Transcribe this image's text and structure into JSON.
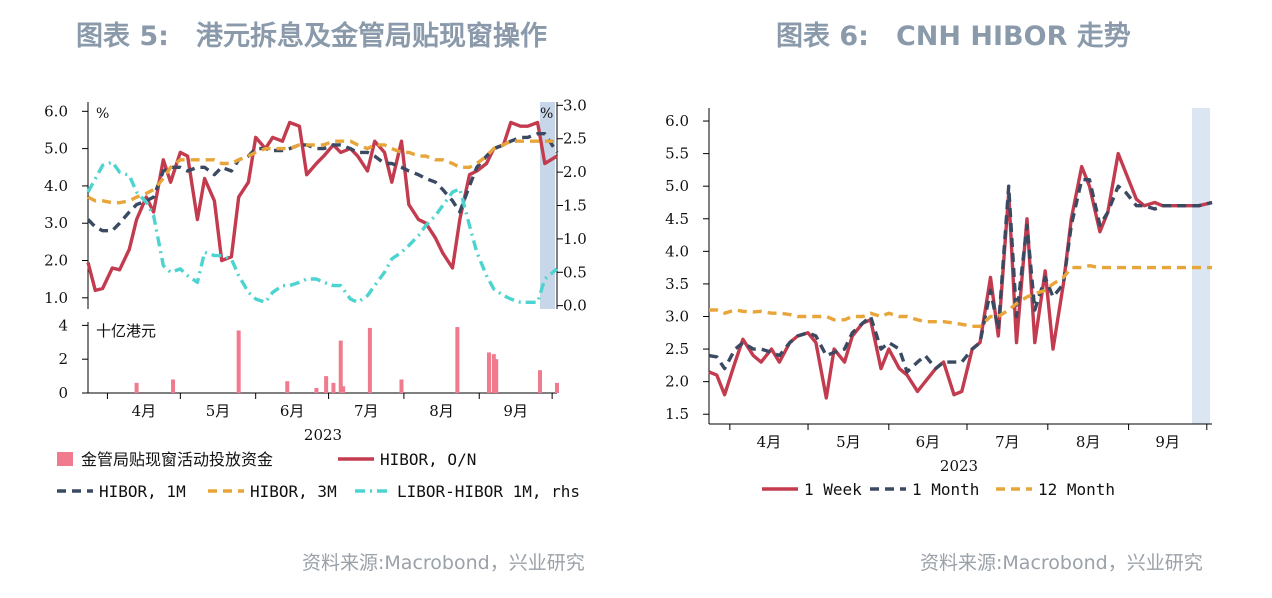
{
  "left": {
    "title": "图表 5:　港元拆息及金管局贴现窗操作",
    "source": "资料来源:Macrobond，兴业研究",
    "chart_data": [
      {
        "type": "line",
        "x": [
          "2023-03-24",
          "2023-03-27",
          "2023-03-30",
          "2023-04-03",
          "2023-04-06",
          "2023-04-10",
          "2023-04-13",
          "2023-04-17",
          "2023-04-20",
          "2023-04-24",
          "2023-04-27",
          "2023-05-01",
          "2023-05-04",
          "2023-05-08",
          "2023-05-11",
          "2023-05-15",
          "2023-05-18",
          "2023-05-22",
          "2023-05-25",
          "2023-05-29",
          "2023-06-01",
          "2023-06-05",
          "2023-06-08",
          "2023-06-12",
          "2023-06-15",
          "2023-06-19",
          "2023-06-22",
          "2023-06-26",
          "2023-06-29",
          "2023-07-03",
          "2023-07-06",
          "2023-07-10",
          "2023-07-13",
          "2023-07-17",
          "2023-07-20",
          "2023-07-24",
          "2023-07-27",
          "2023-07-31",
          "2023-08-03",
          "2023-08-07",
          "2023-08-10",
          "2023-08-14",
          "2023-08-17",
          "2023-08-21",
          "2023-08-24",
          "2023-08-28",
          "2023-08-31",
          "2023-09-04",
          "2023-09-07",
          "2023-09-11",
          "2023-09-14",
          "2023-09-18",
          "2023-09-21",
          "2023-09-25",
          "2023-09-28",
          "2023-10-03"
        ],
        "y_axis_left": {
          "ticks": [
            "1.0",
            "2.0",
            "3.0",
            "4.0",
            "5.0",
            "6.0"
          ],
          "unit": "%",
          "ylim": [
            0.7,
            6.25
          ]
        },
        "y_axis_right": {
          "ticks": [
            "0.0",
            "0.5",
            "1.0",
            "1.5",
            "2.0",
            "2.5",
            "3.0"
          ],
          "unit": "%",
          "ylim": [
            -0.05,
            3.05
          ]
        },
        "x_ticks": [
          "4月",
          "5月",
          "6月",
          "7月",
          "8月",
          "9月"
        ],
        "xlabel": "2023",
        "series": [
          {
            "name": "HIBOR, O/N",
            "color": "#c33b4e",
            "style": "solid",
            "axis": "left",
            "values": [
              1.95,
              1.2,
              1.25,
              1.8,
              1.75,
              2.3,
              3.1,
              3.7,
              3.3,
              4.7,
              4.1,
              4.9,
              4.8,
              3.1,
              4.2,
              3.6,
              2.0,
              2.1,
              3.7,
              4.1,
              5.3,
              5.0,
              5.3,
              5.2,
              5.7,
              5.6,
              4.3,
              4.6,
              4.8,
              5.1,
              4.9,
              5.0,
              4.8,
              4.4,
              5.2,
              4.9,
              4.1,
              5.2,
              3.5,
              3.1,
              3.0,
              2.6,
              2.2,
              1.8,
              3.1,
              4.3,
              4.4,
              4.6,
              5.0,
              5.1,
              5.7,
              5.6,
              5.6,
              5.7,
              4.6,
              4.8
            ]
          },
          {
            "name": "HIBOR, 1M",
            "color": "#3b4a63",
            "style": "dashed",
            "axis": "left",
            "values": [
              3.1,
              2.9,
              2.8,
              2.8,
              3.0,
              3.3,
              3.5,
              3.6,
              3.7,
              4.4,
              4.5,
              4.5,
              4.4,
              4.5,
              4.5,
              4.3,
              4.5,
              4.4,
              4.7,
              4.8,
              5.0,
              5.0,
              4.95,
              4.95,
              5.0,
              5.1,
              5.1,
              5.0,
              5.0,
              5.1,
              5.1,
              5.0,
              4.9,
              4.9,
              4.8,
              4.6,
              4.6,
              4.5,
              4.4,
              4.3,
              4.2,
              4.1,
              3.9,
              3.6,
              3.3,
              4.0,
              4.5,
              4.8,
              5.0,
              5.1,
              5.2,
              5.3,
              5.3,
              5.4,
              5.4,
              4.9
            ]
          },
          {
            "name": "HIBOR, 3M",
            "color": "#e8a53a",
            "style": "dashed",
            "axis": "left",
            "values": [
              3.7,
              3.6,
              3.6,
              3.55,
              3.55,
              3.6,
              3.7,
              3.8,
              3.9,
              4.2,
              4.5,
              4.7,
              4.7,
              4.7,
              4.7,
              4.7,
              4.6,
              4.6,
              4.7,
              4.8,
              4.9,
              5.0,
              5.0,
              5.0,
              5.0,
              5.1,
              5.1,
              5.1,
              5.1,
              5.2,
              5.2,
              5.2,
              5.1,
              5.0,
              5.1,
              5.1,
              5.0,
              4.9,
              4.9,
              4.8,
              4.8,
              4.7,
              4.7,
              4.6,
              4.5,
              4.5,
              4.6,
              4.8,
              5.0,
              5.1,
              5.2,
              5.2,
              5.2,
              5.2,
              5.2,
              5.2
            ]
          },
          {
            "name": "LIBOR-HIBOR 1M, rhs",
            "color": "#4cd4d0",
            "style": "dashdot",
            "axis": "right",
            "values": [
              1.7,
              1.9,
              2.1,
              2.15,
              2.0,
              1.95,
              1.7,
              1.55,
              1.35,
              0.6,
              0.5,
              0.55,
              0.45,
              0.35,
              0.8,
              0.75,
              0.75,
              0.7,
              0.45,
              0.2,
              0.1,
              0.05,
              0.2,
              0.3,
              0.3,
              0.35,
              0.4,
              0.4,
              0.35,
              0.3,
              0.3,
              0.1,
              0.05,
              0.15,
              0.3,
              0.5,
              0.7,
              0.8,
              0.9,
              1.05,
              1.2,
              1.35,
              1.5,
              1.7,
              1.75,
              1.2,
              0.8,
              0.45,
              0.25,
              0.15,
              0.1,
              0.05,
              0.05,
              0.05,
              0.4,
              0.55
            ]
          }
        ]
      },
      {
        "type": "bar",
        "x": [
          "2023-04-13",
          "2023-04-28",
          "2023-05-25",
          "2023-06-14",
          "2023-06-26",
          "2023-06-30",
          "2023-07-03",
          "2023-07-06",
          "2023-07-07",
          "2023-07-18",
          "2023-07-31",
          "2023-08-23",
          "2023-09-05",
          "2023-09-07",
          "2023-09-08",
          "2023-09-26",
          "2023-10-03"
        ],
        "y_axis": {
          "ticks": [
            "0",
            "2",
            "4"
          ],
          "unit": "十亿港元",
          "ylim": [
            0,
            4.2
          ]
        },
        "series": [
          {
            "name": "金管局贴现窗活动投放资金",
            "color": "#f07a8e",
            "values": [
              0.6,
              0.8,
              3.7,
              0.7,
              0.3,
              1.0,
              0.6,
              3.1,
              0.4,
              3.85,
              0.8,
              3.9,
              2.4,
              2.3,
              2.0,
              1.35,
              0.6
            ]
          }
        ]
      }
    ],
    "legend": [
      {
        "label": "金管局贴现窗活动投放资金",
        "kind": "bar",
        "color": "#f07a8e"
      },
      {
        "label": "HIBOR, O/N",
        "kind": "solid",
        "color": "#c33b4e"
      },
      {
        "label": "HIBOR, 1M",
        "kind": "dashed",
        "color": "#3b4a63"
      },
      {
        "label": "HIBOR, 3M",
        "kind": "dashed",
        "color": "#e8a53a"
      },
      {
        "label": "LIBOR-HIBOR 1M, rhs",
        "kind": "dashdot",
        "color": "#4cd4d0"
      }
    ]
  },
  "right": {
    "title": "图表 6:　CNH HIBOR 走势",
    "source": "资料来源:Macrobond，兴业研究",
    "chart_data": {
      "type": "line",
      "x": [
        "2023-03-24",
        "2023-03-27",
        "2023-03-30",
        "2023-04-03",
        "2023-04-06",
        "2023-04-10",
        "2023-04-13",
        "2023-04-17",
        "2023-04-20",
        "2023-04-24",
        "2023-04-27",
        "2023-05-01",
        "2023-05-04",
        "2023-05-08",
        "2023-05-11",
        "2023-05-15",
        "2023-05-18",
        "2023-05-22",
        "2023-05-25",
        "2023-05-29",
        "2023-06-01",
        "2023-06-05",
        "2023-06-08",
        "2023-06-12",
        "2023-06-15",
        "2023-06-19",
        "2023-06-22",
        "2023-06-26",
        "2023-06-29",
        "2023-07-03",
        "2023-07-06",
        "2023-07-10",
        "2023-07-13",
        "2023-07-17",
        "2023-07-20",
        "2023-07-24",
        "2023-07-27",
        "2023-07-31",
        "2023-08-03",
        "2023-08-07",
        "2023-08-10",
        "2023-08-14",
        "2023-08-17",
        "2023-08-21",
        "2023-08-24",
        "2023-08-28",
        "2023-08-31",
        "2023-09-04",
        "2023-09-07",
        "2023-09-11",
        "2023-09-14",
        "2023-09-18",
        "2023-09-21",
        "2023-09-25",
        "2023-09-28",
        "2023-10-03"
      ],
      "y_axis": {
        "ticks": [
          "1.5",
          "2.0",
          "2.5",
          "3.0",
          "3.5",
          "4.0",
          "4.5",
          "5.0",
          "5.5",
          "6.0"
        ],
        "ylim": [
          1.35,
          6.2
        ]
      },
      "x_ticks": [
        "4月",
        "5月",
        "6月",
        "7月",
        "8月",
        "9月"
      ],
      "xlabel": "2023",
      "series": [
        {
          "name": "1 Week",
          "color": "#c33b4e",
          "style": "solid",
          "values": [
            2.15,
            2.1,
            1.8,
            2.3,
            2.65,
            2.4,
            2.3,
            2.5,
            2.3,
            2.6,
            2.7,
            2.75,
            2.6,
            1.75,
            2.5,
            2.3,
            2.7,
            2.9,
            2.95,
            2.2,
            2.5,
            2.2,
            2.1,
            1.85,
            2.0,
            2.2,
            2.3,
            1.8,
            1.85,
            2.5,
            2.6,
            3.6,
            2.7,
            4.9,
            2.6,
            4.5,
            2.6,
            3.7,
            2.5,
            3.5,
            4.5,
            5.3,
            5.0,
            4.3,
            4.6,
            5.5,
            5.2,
            4.8,
            4.7,
            4.75,
            4.7,
            4.7,
            4.7,
            4.7,
            4.7,
            4.75
          ]
        },
        {
          "name": "1 Month",
          "color": "#3b4a63",
          "style": "dashed",
          "values": [
            2.4,
            2.38,
            2.2,
            2.5,
            2.6,
            2.5,
            2.5,
            2.45,
            2.4,
            2.6,
            2.7,
            2.75,
            2.7,
            2.4,
            2.45,
            2.5,
            2.75,
            2.9,
            3.0,
            2.5,
            2.6,
            2.5,
            2.15,
            2.3,
            2.4,
            2.2,
            2.3,
            2.3,
            2.3,
            2.5,
            2.6,
            3.4,
            2.8,
            5.0,
            3.0,
            4.4,
            3.1,
            3.6,
            3.3,
            3.5,
            4.4,
            5.1,
            5.1,
            4.4,
            4.6,
            5.0,
            4.9,
            4.7,
            4.7,
            4.65,
            4.7,
            4.7,
            4.7,
            4.7,
            4.7,
            4.75
          ]
        },
        {
          "name": "12 Month",
          "color": "#e8a53a",
          "style": "dashed",
          "values": [
            3.1,
            3.1,
            3.05,
            3.1,
            3.08,
            3.07,
            3.08,
            3.05,
            3.05,
            3.03,
            3.0,
            3.0,
            3.0,
            3.0,
            2.95,
            2.95,
            3.0,
            3.0,
            3.05,
            3.0,
            3.05,
            3.0,
            3.0,
            2.95,
            2.92,
            2.92,
            2.92,
            2.9,
            2.88,
            2.85,
            2.85,
            3.0,
            3.0,
            3.1,
            3.2,
            3.3,
            3.35,
            3.4,
            3.5,
            3.6,
            3.75,
            3.75,
            3.78,
            3.75,
            3.75,
            3.75,
            3.75,
            3.75,
            3.75,
            3.75,
            3.75,
            3.75,
            3.75,
            3.75,
            3.75,
            3.75
          ]
        }
      ]
    }
  }
}
